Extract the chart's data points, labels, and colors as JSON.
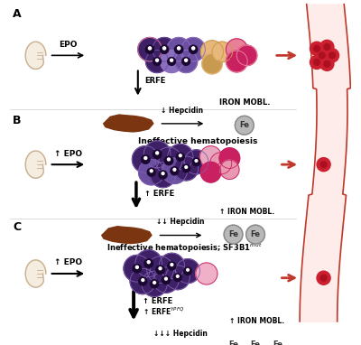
{
  "bg_color": "#ffffff",
  "panel_labels": [
    "A",
    "B",
    "C"
  ],
  "dark_red": "#C0392B",
  "arrow_color": "#C0392B",
  "vessel_fill": "#FDECEA",
  "vessel_border": "#C0392B",
  "cell_colors": {
    "dark_purple": "#3D2066",
    "medium_purple": "#6B4FA0",
    "light_purple": "#8B6FBF",
    "peach": "#E8B87A",
    "peach_dark": "#C89A50",
    "pink_light": "#E88098",
    "pink_dark": "#C82060",
    "pink_rbc": "#CC2030"
  },
  "liver_color": "#7B3510",
  "kidney_fill": "#F5EDE0",
  "kidney_border": "#C8B090",
  "fe_fill": "#B8B8B8",
  "fe_border": "#888888",
  "fe_text": "#333333"
}
